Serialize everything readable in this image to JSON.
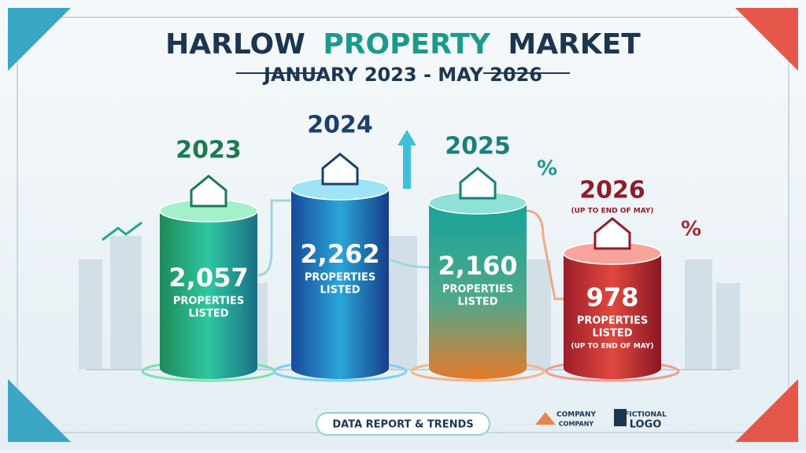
{
  "header": {
    "title_parts": [
      "HARLOW",
      "PROPERTY",
      "MARKET"
    ],
    "subtitle": "JANUARY 2023 - MAY 2026"
  },
  "cards": [
    {
      "year": "2023",
      "value": "2,057",
      "label_lines": [
        "PROPERTIES",
        "LISTED"
      ]
    },
    {
      "year": "2024",
      "value": "2,262",
      "label_lines": [
        "PROPERTIES",
        "LISTED"
      ]
    },
    {
      "year": "2025",
      "value": "2,160",
      "label_lines": [
        "PROPERTIES",
        "LISTED"
      ]
    },
    {
      "year": "2026",
      "year_note": "(UP TO END OF MAY)",
      "value": "978",
      "label_lines": [
        "PROPERTIES",
        "LISTED"
      ],
      "note": "(UP TO END OF MAY)"
    }
  ],
  "decor_symbols": [
    "%",
    "%"
  ],
  "footer": {
    "badge": "DATA REPORT & TRENDS",
    "logos": [
      {
        "lines": [
          "COMPANY",
          "COMPANY"
        ]
      },
      {
        "lines": [
          "FICTIONAL",
          "LOGO"
        ]
      }
    ]
  }
}
